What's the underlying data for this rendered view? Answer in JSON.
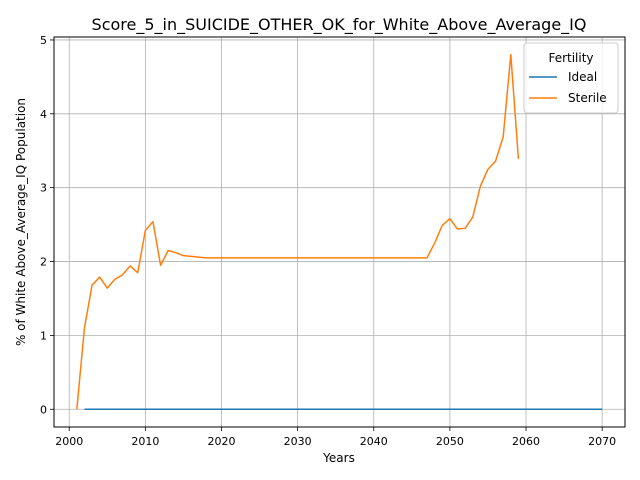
{
  "chart_data": {
    "type": "line",
    "title": "Score_5_in_SUICIDE_OTHER_OK_for_White_Above_Average_IQ",
    "xlabel": "Years",
    "ylabel": "% of White Above_Average_IQ Population",
    "xlim": [
      1998,
      2073
    ],
    "ylim": [
      -0.24,
      5.04
    ],
    "xticks": [
      2000,
      2010,
      2020,
      2030,
      2040,
      2050,
      2060,
      2070
    ],
    "yticks": [
      0,
      1,
      2,
      3,
      4,
      5
    ],
    "grid": true,
    "legend": {
      "title": "Fertility",
      "placement": "top-right"
    },
    "series": [
      {
        "name": "Ideal",
        "color": "#1f77b4",
        "x": [
          2002,
          2010,
          2020,
          2030,
          2040,
          2050,
          2060,
          2070
        ],
        "y": [
          0,
          0,
          0,
          0,
          0,
          0,
          0,
          0
        ]
      },
      {
        "name": "Sterile",
        "color": "#ff7f0e",
        "x": [
          2001,
          2002,
          2003,
          2004,
          2005,
          2006,
          2007,
          2008,
          2009,
          2010,
          2011,
          2012,
          2013,
          2014,
          2015,
          2016,
          2017,
          2018,
          2019,
          2020,
          2025,
          2030,
          2035,
          2040,
          2045,
          2047,
          2048,
          2049,
          2050,
          2051,
          2052,
          2053,
          2054,
          2055,
          2056,
          2057,
          2058,
          2059
        ],
        "y": [
          0.0,
          1.1,
          1.68,
          1.79,
          1.64,
          1.76,
          1.82,
          1.94,
          1.85,
          2.42,
          2.54,
          1.95,
          2.15,
          2.12,
          2.08,
          2.07,
          2.06,
          2.05,
          2.05,
          2.05,
          2.05,
          2.05,
          2.05,
          2.05,
          2.05,
          2.05,
          2.25,
          2.49,
          2.58,
          2.44,
          2.45,
          2.6,
          3.02,
          3.25,
          3.36,
          3.69,
          4.8,
          3.39
        ]
      }
    ]
  }
}
